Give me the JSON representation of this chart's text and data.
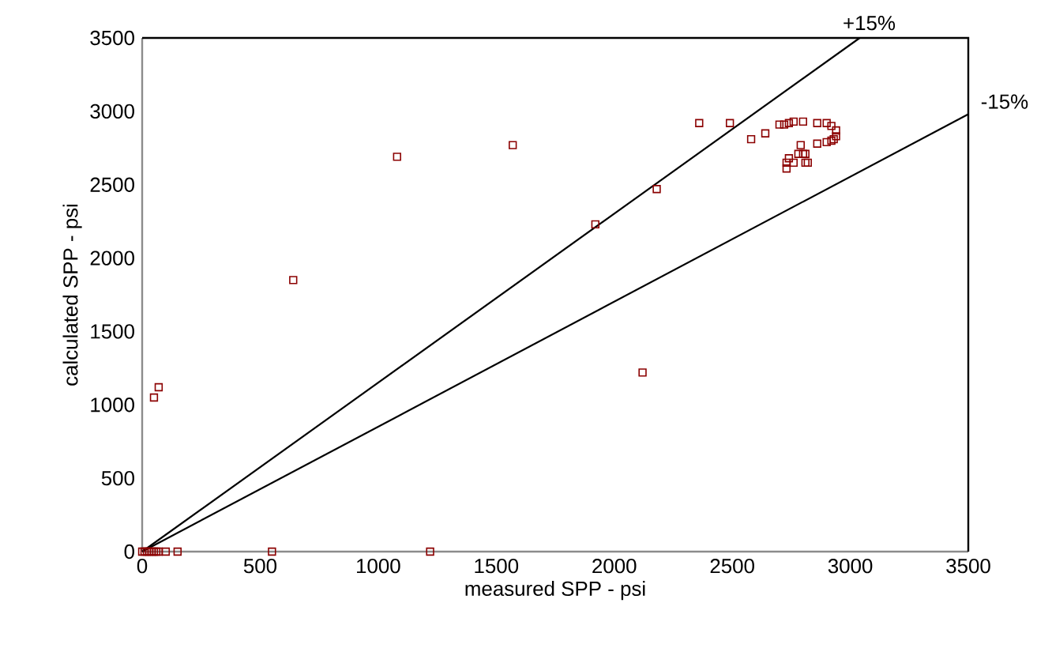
{
  "chart_data": {
    "type": "scatter",
    "xlabel": "measured SPP - psi",
    "ylabel": "calculated SPP - psi",
    "xlim": [
      0,
      3500
    ],
    "ylim": [
      0,
      3500
    ],
    "xticks": [
      0,
      500,
      1000,
      1500,
      2000,
      2500,
      3000,
      3500
    ],
    "yticks": [
      0,
      500,
      1000,
      1500,
      2000,
      2500,
      3000,
      3500
    ],
    "grid": false,
    "legend": false,
    "series": [
      {
        "color": "#8b0000",
        "marker": "square",
        "x": [
          0,
          10,
          20,
          30,
          40,
          50,
          60,
          70,
          100,
          150,
          550,
          1220,
          50,
          70,
          640,
          1080,
          1570,
          1920,
          2120,
          2180,
          2360,
          2490,
          2580,
          2640,
          2700,
          2720,
          2740,
          2760,
          2800,
          2860,
          2900,
          2920,
          2940,
          2940,
          2930,
          2920,
          2860,
          2900,
          2800,
          2810,
          2780,
          2730,
          2730,
          2740,
          2760,
          2810,
          2820,
          2790
        ],
        "values": [
          0,
          0,
          0,
          0,
          0,
          0,
          0,
          0,
          0,
          0,
          0,
          0,
          1050,
          1120,
          1850,
          2690,
          2770,
          2230,
          1220,
          2470,
          2920,
          2920,
          2810,
          2850,
          2910,
          2910,
          2920,
          2930,
          2930,
          2920,
          2920,
          2900,
          2870,
          2830,
          2810,
          2800,
          2780,
          2790,
          2710,
          2710,
          2710,
          2650,
          2610,
          2680,
          2650,
          2650,
          2650,
          2770
        ]
      },
      {
        "type": "line",
        "name": "+15%",
        "color": "#000000",
        "marker": "none",
        "line_style": "solid",
        "x": [
          0,
          3040
        ],
        "values": [
          0,
          3500
        ]
      },
      {
        "type": "line",
        "name": "-15%",
        "color": "#000000",
        "marker": "none",
        "line_style": "solid",
        "x": [
          0,
          3500
        ],
        "values": [
          0,
          2980
        ]
      }
    ]
  }
}
